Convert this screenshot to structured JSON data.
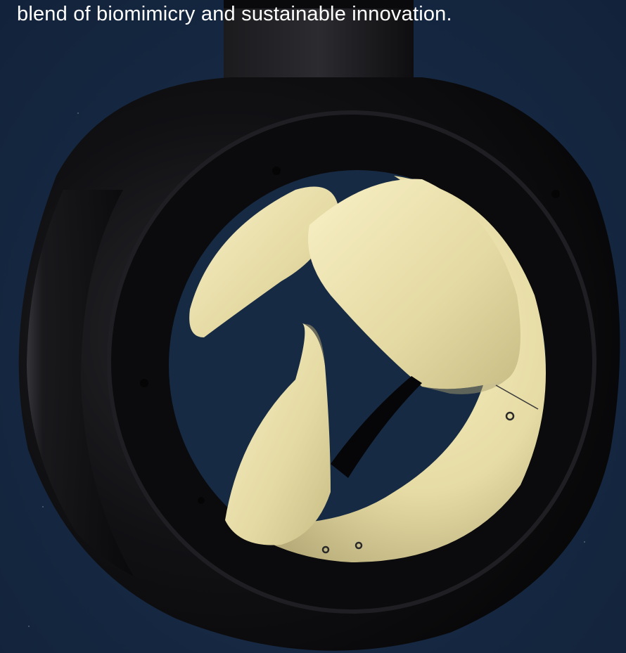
{
  "caption": {
    "text": "blend of biomimicry and sustainable innovation."
  },
  "colors": {
    "background": "#172a44",
    "housing": "#0c0c0e",
    "propeller": "#efe7b6",
    "caption_text": "#ffffff"
  },
  "image": {
    "subject": "ducted-thruster-icon"
  }
}
